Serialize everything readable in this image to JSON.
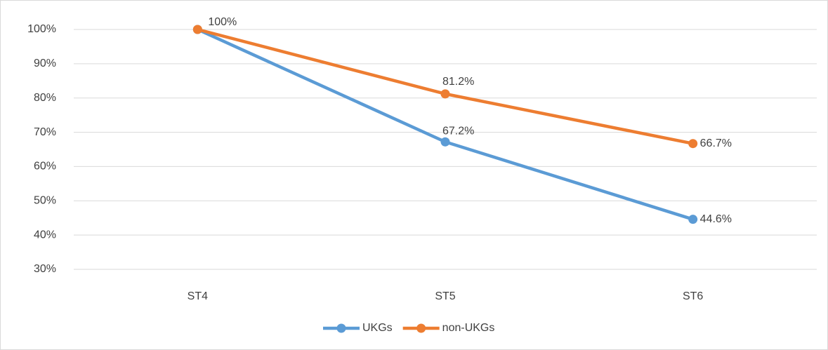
{
  "chart_data": {
    "type": "line",
    "categories": [
      "ST4",
      "ST5",
      "ST6"
    ],
    "series": [
      {
        "name": "UKGs",
        "color": "#5b9bd5",
        "values": [
          100,
          67.2,
          44.6
        ],
        "value_labels": [
          null,
          "67.2%",
          "44.6%"
        ]
      },
      {
        "name": "non-UKGs",
        "color": "#ed7d31",
        "values": [
          100,
          81.2,
          66.7
        ],
        "value_labels": [
          "100%",
          "81.2%",
          "66.7%"
        ]
      }
    ],
    "ylim": [
      30,
      100
    ],
    "yticks": [
      {
        "value": 30,
        "label": "30%"
      },
      {
        "value": 40,
        "label": "40%"
      },
      {
        "value": 50,
        "label": "50%"
      },
      {
        "value": 60,
        "label": "60%"
      },
      {
        "value": 70,
        "label": "70%"
      },
      {
        "value": 80,
        "label": "80%"
      },
      {
        "value": 90,
        "label": "90%"
      },
      {
        "value": 100,
        "label": "100%"
      }
    ],
    "grid": true,
    "legend": "bottom"
  }
}
